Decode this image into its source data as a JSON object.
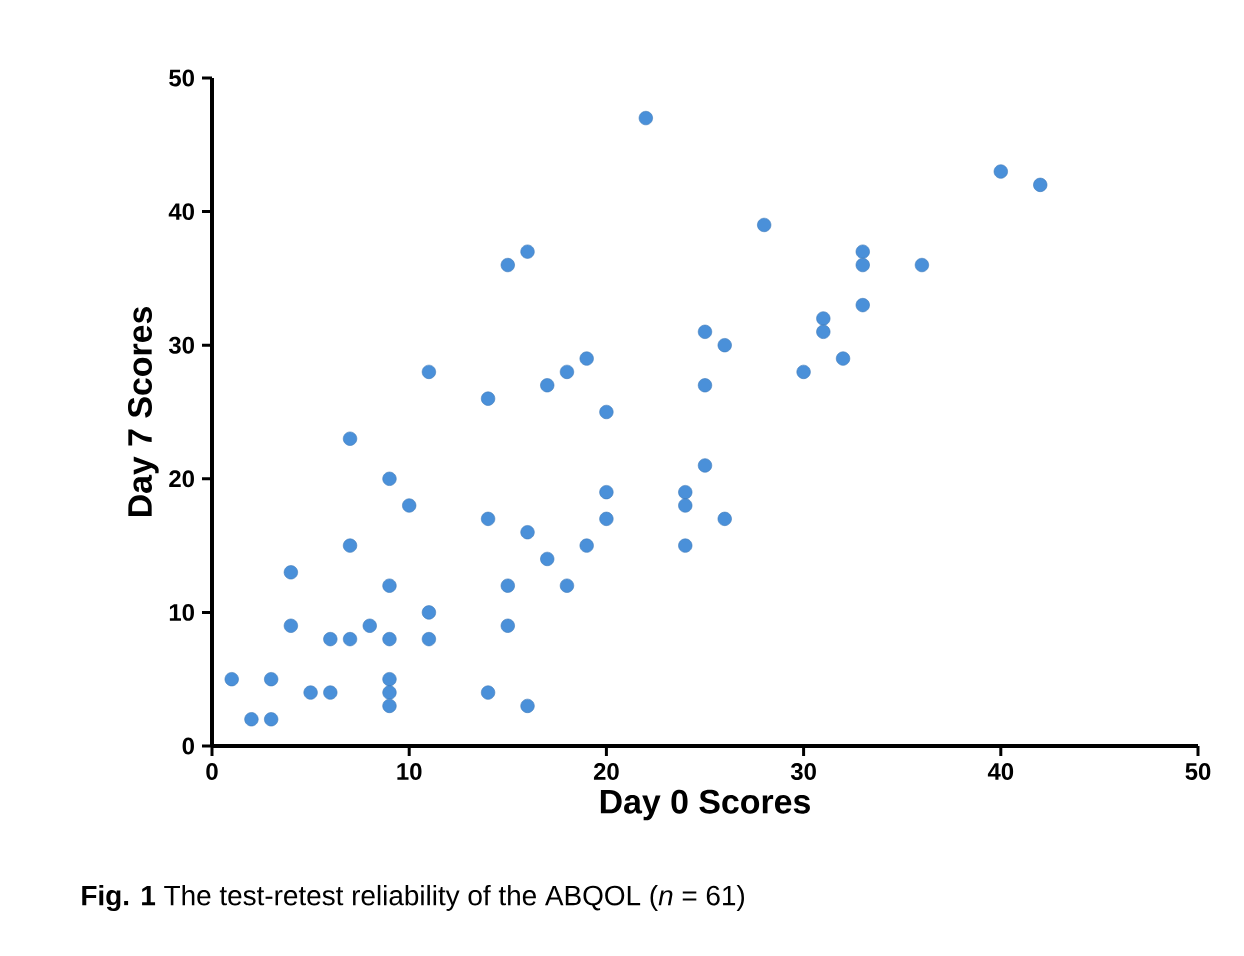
{
  "chart_data": {
    "type": "scatter",
    "xlabel": "Day 0 Scores",
    "ylabel": "Day 7 Scores",
    "annotations": [
      "**Fig. 1** The test-retest reliability of the ABQOL (*n* = 61)"
    ],
    "x": [
      1,
      2,
      3,
      3,
      4,
      4,
      5,
      6,
      6,
      7,
      7,
      7,
      8,
      9,
      9,
      9,
      9,
      9,
      9,
      10,
      11,
      11,
      11,
      14,
      14,
      14,
      15,
      15,
      15,
      16,
      16,
      16,
      17,
      17,
      18,
      18,
      19,
      19,
      20,
      20,
      20,
      22,
      24,
      24,
      24,
      25,
      25,
      25,
      26,
      26,
      28,
      30,
      31,
      31,
      32,
      33,
      33,
      33,
      36,
      40,
      42
    ],
    "values": [
      5,
      2,
      2,
      5,
      13,
      9,
      4,
      4,
      8,
      8,
      15,
      23,
      9,
      20,
      12,
      8,
      5,
      4,
      3,
      18,
      28,
      10,
      8,
      26,
      17,
      4,
      36,
      12,
      9,
      37,
      16,
      3,
      27,
      14,
      28,
      12,
      29,
      15,
      25,
      19,
      17,
      47,
      19,
      18,
      15,
      31,
      27,
      21,
      30,
      17,
      39,
      28,
      32,
      31,
      29,
      37,
      36,
      33,
      36,
      43,
      42
    ],
    "color": "#4a90d9",
    "marker": "circle",
    "xlim": [
      0,
      50
    ],
    "ylim": [
      0,
      50
    ],
    "xticks": [
      0,
      10,
      20,
      30,
      40,
      50
    ],
    "yticks": [
      0,
      10,
      20,
      30,
      40,
      50
    ],
    "grid": false
  }
}
